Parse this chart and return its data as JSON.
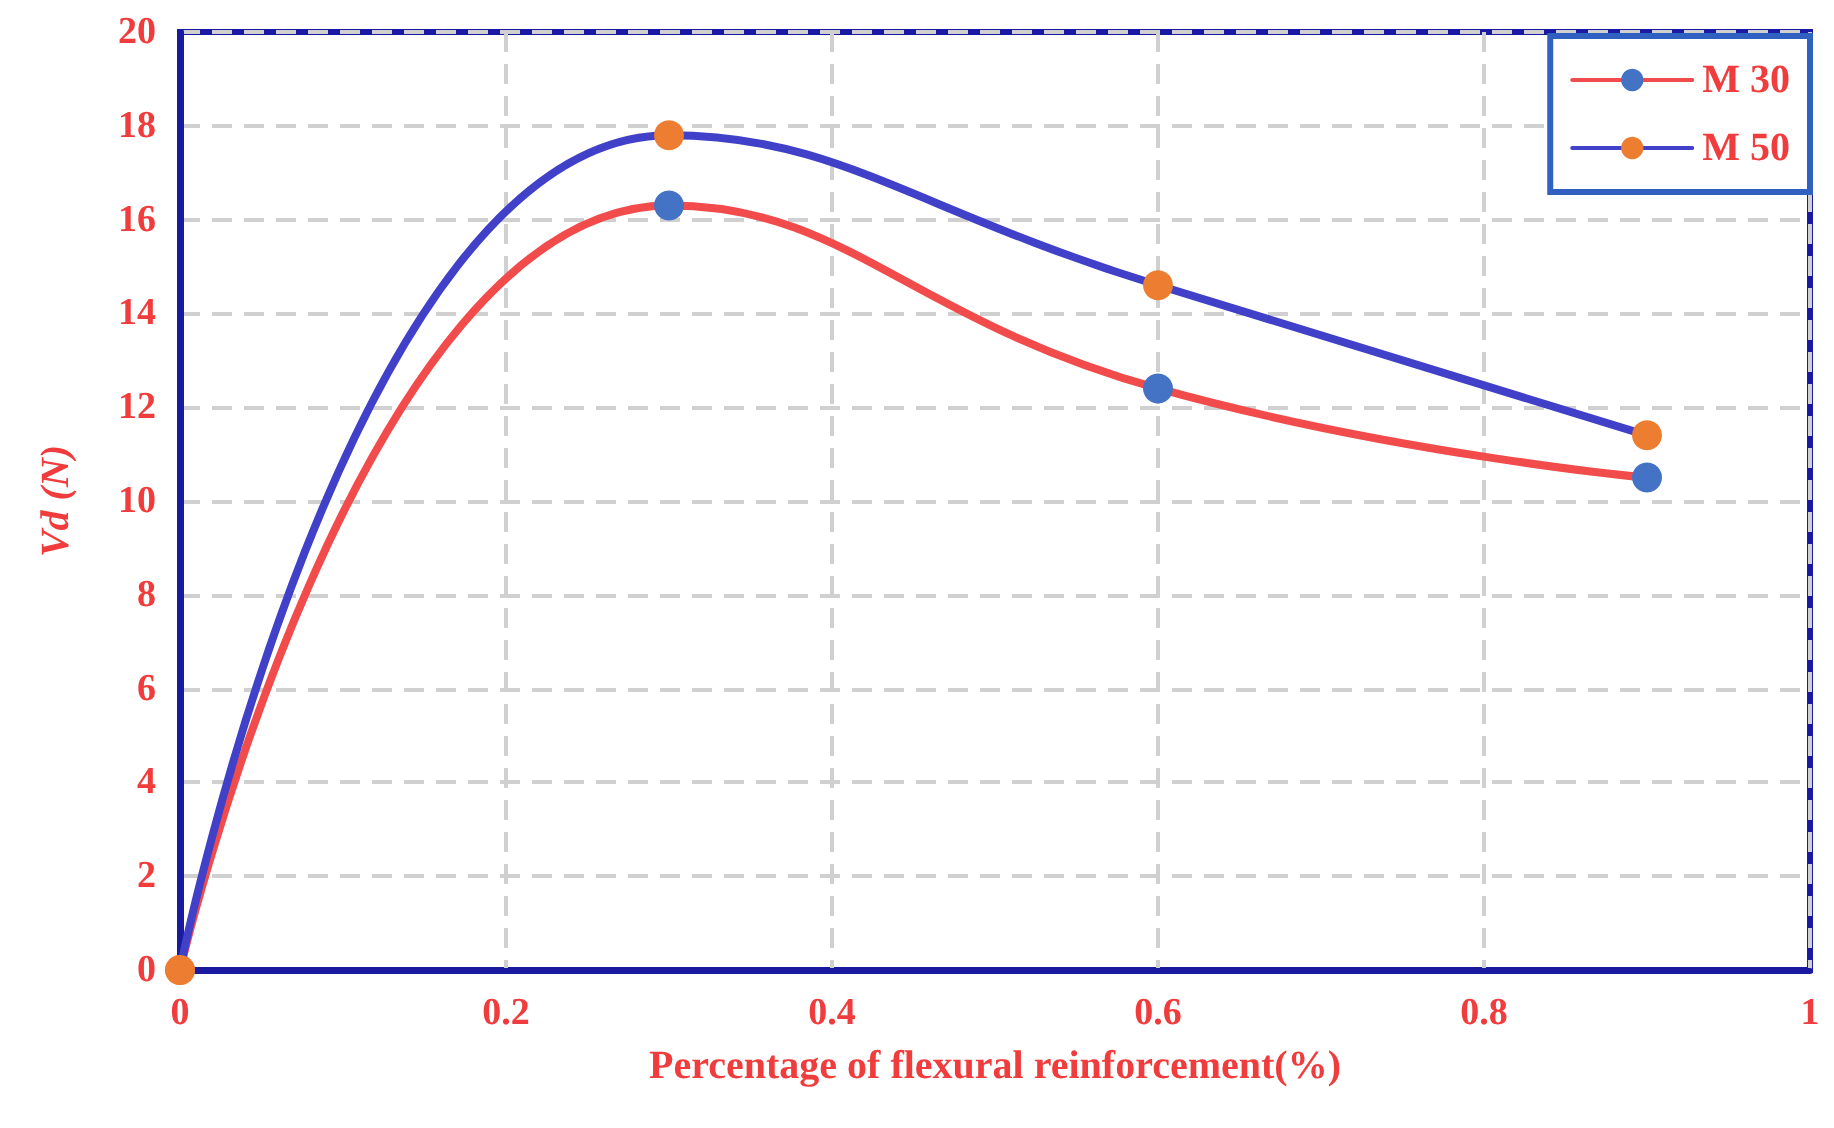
{
  "chart_data": {
    "type": "line",
    "xlabel": "Percentage of flexural reinforcement(%)",
    "ylabel": "Vd (N)",
    "xlim": [
      0,
      1
    ],
    "xticks": [
      0,
      0.2,
      0.4,
      0.6,
      0.8,
      1
    ],
    "ylim": [
      0,
      20
    ],
    "yticks": [
      0,
      2,
      4,
      6,
      8,
      10,
      12,
      14,
      16,
      18,
      20
    ],
    "grid": true,
    "legend": "top right",
    "marker": "circle",
    "line_style": "solid",
    "series": [
      {
        "name": "M 30",
        "color": "#f24b4b",
        "colors": [
          "#ed7d31",
          "#4472c4",
          "#4472c4",
          "#4472c4"
        ],
        "x": [
          0,
          0.3,
          0.6,
          0.9
        ],
        "values": [
          0,
          16.3,
          12.4,
          10.5
        ]
      },
      {
        "name": "M 50",
        "color": "#4040c8",
        "colors": [
          "#ed7d31",
          "#ed7d31",
          "#ed7d31",
          "#ed7d31"
        ],
        "x": [
          0,
          0.3,
          0.6,
          0.9
        ],
        "values": [
          0,
          17.8,
          14.6,
          11.4
        ]
      }
    ]
  }
}
